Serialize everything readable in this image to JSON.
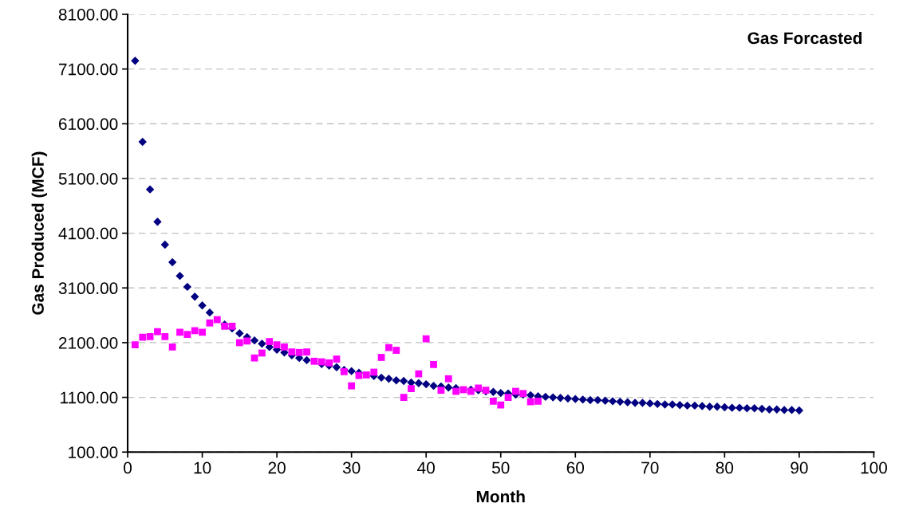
{
  "chart_data": {
    "type": "scatter",
    "title": "Gas Forcasted",
    "xlabel": "Month",
    "ylabel": "Gas Produced (MCF)",
    "xlim": [
      0,
      100
    ],
    "xticks": [
      0,
      10,
      20,
      30,
      40,
      50,
      60,
      70,
      80,
      90,
      100
    ],
    "ylim": [
      100,
      8100
    ],
    "yticks": [
      {
        "value": 100,
        "label": "100.00"
      },
      {
        "value": 1100,
        "label": "1100.00"
      },
      {
        "value": 2100,
        "label": "2100.00"
      },
      {
        "value": 3100,
        "label": "3100.00"
      },
      {
        "value": 4100,
        "label": "4100.00"
      },
      {
        "value": 5100,
        "label": "5100.00"
      },
      {
        "value": 6100,
        "label": "6100.00"
      },
      {
        "value": 7100,
        "label": "7100.00"
      },
      {
        "value": 8100,
        "label": "8100.00"
      }
    ],
    "grid": "y",
    "legend": false,
    "series": [
      {
        "color": "#000080",
        "marker": "diamond",
        "x": [
          1,
          2,
          3,
          4,
          5,
          6,
          7,
          8,
          9,
          10,
          11,
          12,
          13,
          14,
          15,
          16,
          17,
          18,
          19,
          20,
          21,
          22,
          23,
          24,
          25,
          26,
          27,
          28,
          29,
          30,
          31,
          32,
          33,
          34,
          35,
          36,
          37,
          38,
          39,
          40,
          41,
          42,
          43,
          44,
          45,
          46,
          47,
          48,
          49,
          50,
          51,
          52,
          53,
          54,
          55,
          56,
          57,
          58,
          59,
          60,
          61,
          62,
          63,
          64,
          65,
          66,
          67,
          68,
          69,
          70,
          71,
          72,
          73,
          74,
          75,
          76,
          77,
          78,
          79,
          80,
          81,
          82,
          83,
          84,
          85,
          86,
          87,
          88,
          89,
          90
        ],
        "values": [
          7250,
          5770,
          4900,
          4310,
          3890,
          3570,
          3320,
          3120,
          2940,
          2780,
          2650,
          null,
          2430,
          2360,
          2270,
          2200,
          2140,
          2080,
          2020,
          1970,
          1920,
          1870,
          1820,
          1780,
          null,
          1710,
          1680,
          1650,
          1600,
          1580,
          1550,
          null,
          1490,
          1460,
          1440,
          1410,
          1400,
          1370,
          1360,
          1340,
          1310,
          1300,
          1280,
          1270,
          null,
          1240,
          1230,
          1210,
          1200,
          1180,
          1170,
          1150,
          1150,
          1140,
          1120,
          1110,
          1100,
          1090,
          1080,
          1070,
          1060,
          1050,
          1050,
          1040,
          1030,
          1020,
          1010,
          1000,
          1000,
          990,
          980,
          970,
          970,
          960,
          950,
          950,
          940,
          930,
          930,
          920,
          910,
          910,
          900,
          900,
          890,
          880,
          880,
          870,
          870,
          860
        ]
      },
      {
        "color": "#ff00ff",
        "marker": "square",
        "x": [
          1,
          2,
          3,
          4,
          5,
          6,
          7,
          8,
          9,
          10,
          11,
          12,
          13,
          14,
          15,
          16,
          17,
          18,
          19,
          20,
          21,
          22,
          23,
          24,
          25,
          26,
          27,
          28,
          29,
          30,
          31,
          32,
          33,
          34,
          35,
          36,
          37,
          38,
          39,
          40,
          41,
          42,
          43,
          44,
          45,
          46,
          47,
          48,
          49,
          50,
          51,
          52,
          53,
          54,
          55
        ],
        "values": [
          2060,
          2200,
          2210,
          2300,
          2210,
          2020,
          2290,
          2250,
          2320,
          2290,
          2460,
          2520,
          2400,
          2400,
          2100,
          2130,
          1820,
          1910,
          2120,
          2060,
          2020,
          1930,
          1920,
          1930,
          1760,
          1750,
          1730,
          1800,
          1570,
          1310,
          1500,
          1510,
          1560,
          1830,
          2010,
          1960,
          1100,
          1260,
          1530,
          2170,
          1700,
          1230,
          1440,
          1210,
          1240,
          1210,
          1270,
          1230,
          1030,
          960,
          1100,
          1210,
          1170,
          1020,
          1030
        ]
      }
    ]
  }
}
